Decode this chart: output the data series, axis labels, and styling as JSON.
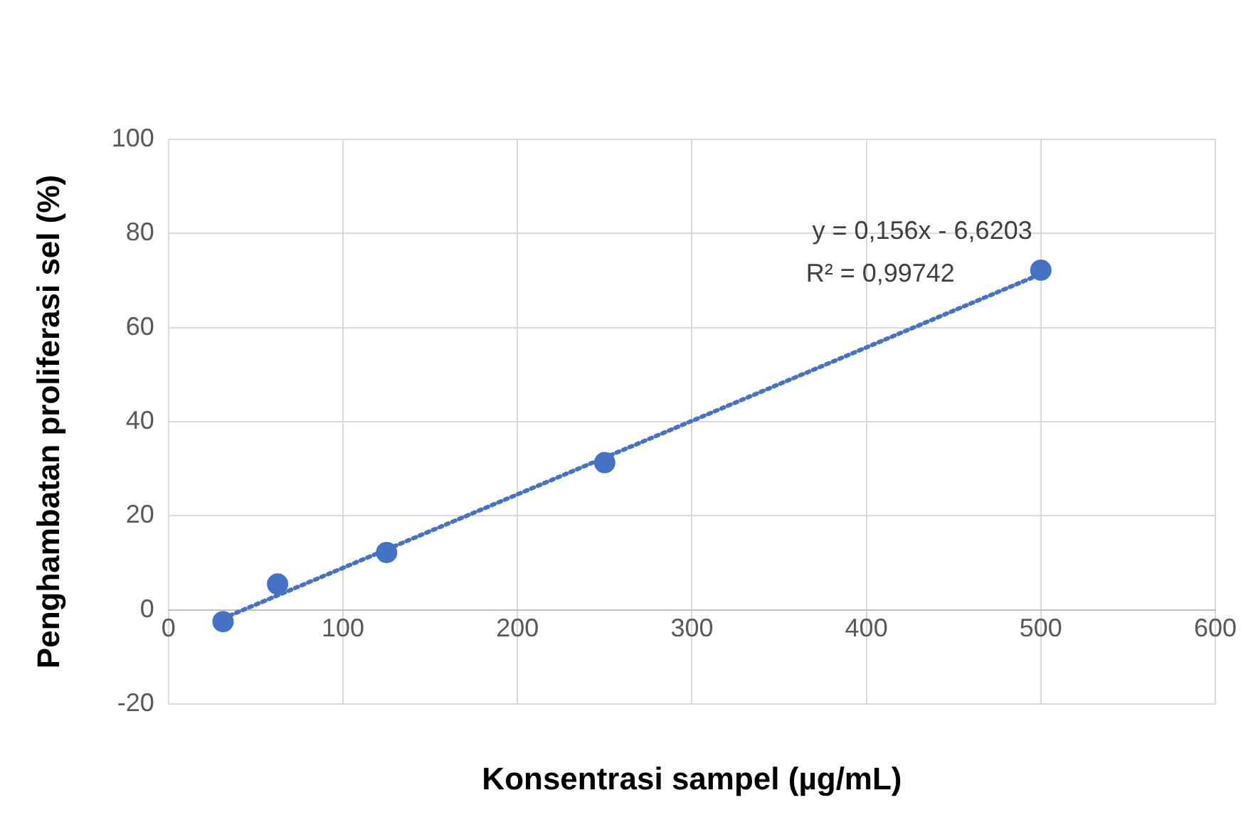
{
  "chart_data": {
    "type": "scatter",
    "xlabel": "Konsentrasi sampel (µg/mL)",
    "ylabel": "Penghambatan proliferasi sel (%)",
    "series": [
      {
        "type": "scatter",
        "color": "#4472c4",
        "marker": "circle",
        "x": [
          31.25,
          62.5,
          125,
          250,
          500
        ],
        "values": [
          -2.5,
          5.5,
          12.2,
          31.3,
          72.2
        ]
      },
      {
        "type": "line",
        "color": "#4472c4",
        "marker": "none",
        "line_style": "dotted",
        "x": [
          31.25,
          500
        ],
        "values": [
          -1.8,
          71.4
        ]
      }
    ],
    "xlim": [
      0,
      600
    ],
    "xticks": [
      0,
      100,
      200,
      300,
      400,
      500,
      600
    ],
    "ylim": [
      -20,
      100
    ],
    "yticks": [
      -20,
      0,
      20,
      40,
      60,
      80,
      100
    ],
    "grid": true,
    "annotations": [
      "y = 0,156x - 6,6203",
      "R² = 0,99742"
    ]
  }
}
